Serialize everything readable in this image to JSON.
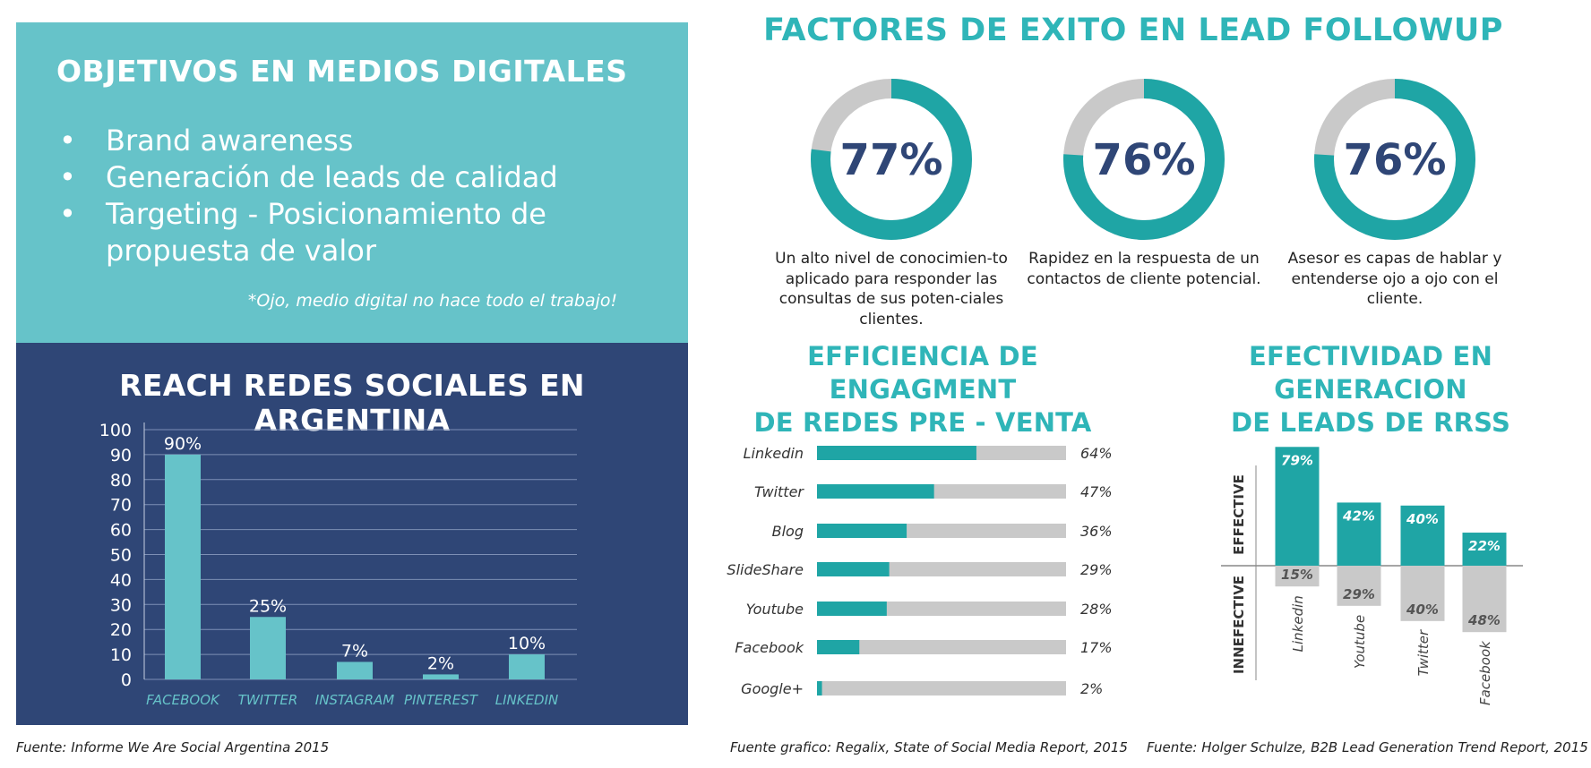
{
  "objectives": {
    "title": "OBJETIVOS EN MEDIOS DIGITALES",
    "bullet_glyph": "•",
    "items": [
      "Brand awareness",
      "Generación de leads de calidad",
      "Targeting - Posicionamiento de propuesta de valor"
    ],
    "note": "*Ojo, medio digital no hace todo el trabajo!"
  },
  "reach": {
    "title": "REACH REDES SOCIALES EN ARGENTINA",
    "source": "Fuente: Informe We Are Social Argentina 2015"
  },
  "factors": {
    "title": "FACTORES DE EXITO EN LEAD FOLLOWUP",
    "items": [
      {
        "value": 77,
        "label": "77%",
        "text": "Un alto nivel de conocimien-to aplicado para responder las consultas de sus poten-ciales clientes."
      },
      {
        "value": 76,
        "label": "76%",
        "text": "Rapidez en la respuesta de un contactos de cliente potencial."
      },
      {
        "value": 76,
        "label": "76%",
        "text": "Asesor es capas de hablar y entenderse ojo a ojo con el cliente."
      }
    ]
  },
  "engagement": {
    "title_line1": "EFFICIENCIA DE ENGAGMENT",
    "title_line2": "DE REDES  PRE - VENTA",
    "source": "Fuente grafico: Regalix, State of Social Media Report, 2015"
  },
  "effectiveness": {
    "title_line1": "EFECTIVIDAD EN GENERACION",
    "title_line2": "DE LEADS DE RRSS",
    "source": "Fuente: Holger Schulze, B2B Lead Generation Trend Report, 2015"
  },
  "colors": {
    "teal": "#66c3c9",
    "teal_dark": "#1fa5a5",
    "navy": "#2f4676",
    "gray": "#c9c9c9",
    "title_teal": "#2fb5b8"
  },
  "chart_data": [
    {
      "type": "bar",
      "title": "REACH REDES SOCIALES EN ARGENTINA",
      "categories": [
        "FACEBOOK",
        "TWITTER",
        "INSTAGRAM",
        "PINTEREST",
        "LINKEDIN"
      ],
      "values": [
        90,
        25,
        7,
        2,
        10
      ],
      "data_labels": [
        "90%",
        "25%",
        "7%",
        "2%",
        "10%"
      ],
      "ylim": [
        0,
        100
      ],
      "yticks": [
        0,
        10,
        20,
        30,
        40,
        50,
        60,
        70,
        80,
        90,
        100
      ],
      "grid": true
    },
    {
      "type": "bar",
      "orientation": "horizontal",
      "title": "EFFICIENCIA DE ENGAGMENT DE REDES  PRE - VENTA",
      "categories": [
        "Linkedin",
        "Twitter",
        "Blog",
        "SlideShare",
        "Youtube",
        "Facebook",
        "Google+"
      ],
      "values": [
        64,
        47,
        36,
        29,
        28,
        17,
        2
      ],
      "data_labels": [
        "64%",
        "47%",
        "36%",
        "29%",
        "28%",
        "17%",
        "2%"
      ],
      "xlim": [
        0,
        100
      ]
    },
    {
      "type": "bar",
      "title": "EFECTIVIDAD EN GENERACION DE LEADS DE RRSS",
      "categories": [
        "Linkedin",
        "Youtube",
        "Twitter",
        "Facebook"
      ],
      "series": [
        {
          "name": "EFFECTIVE",
          "values": [
            79,
            42,
            40,
            22
          ],
          "labels": [
            "79%",
            "42%",
            "40%",
            "22%"
          ]
        },
        {
          "name": "INNEFECTIVE",
          "values": [
            15,
            29,
            40,
            48
          ],
          "labels": [
            "15%",
            "29%",
            "40%",
            "48%"
          ]
        }
      ]
    }
  ]
}
